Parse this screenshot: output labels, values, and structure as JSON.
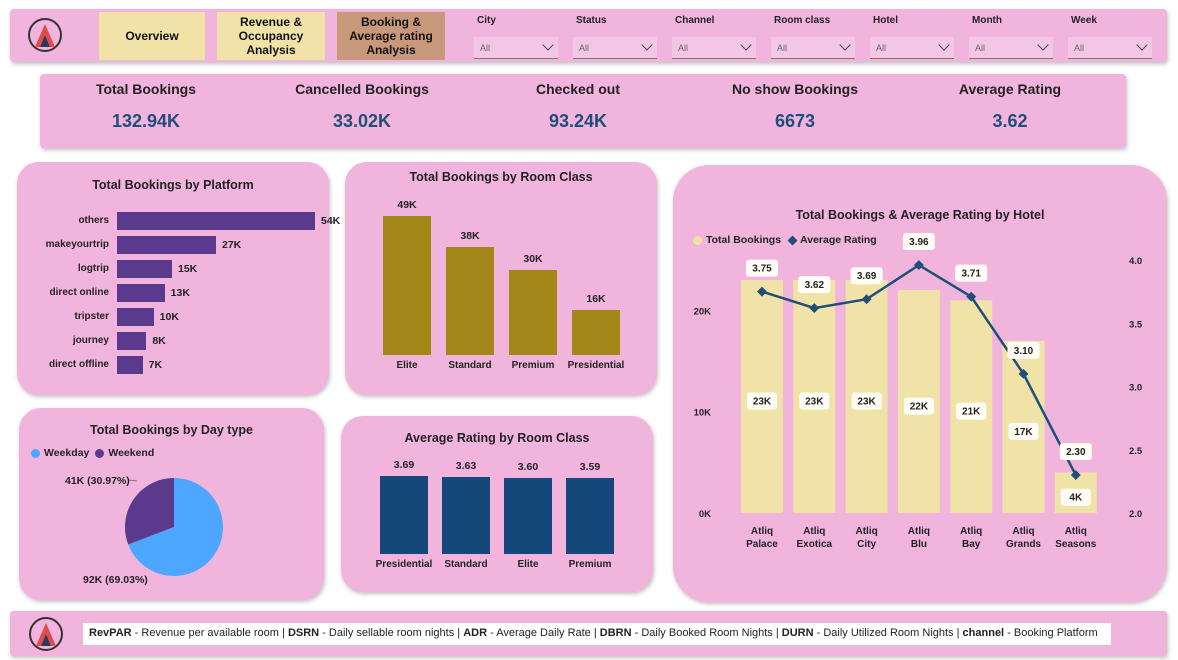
{
  "nav": {
    "overview": "Overview",
    "revenue": "Revenue & Occupancy Analysis",
    "booking": "Booking & Average rating Analysis"
  },
  "filters": [
    {
      "label": "City",
      "value": "All"
    },
    {
      "label": "Status",
      "value": "All"
    },
    {
      "label": "Channel",
      "value": "All"
    },
    {
      "label": "Room class",
      "value": "All"
    },
    {
      "label": "Hotel",
      "value": "All"
    },
    {
      "label": "Month",
      "value": "All"
    },
    {
      "label": "Week",
      "value": "All"
    }
  ],
  "kpis": [
    {
      "title": "Total Bookings",
      "value": "132.94K"
    },
    {
      "title": "Cancelled Bookings",
      "value": "33.02K"
    },
    {
      "title": "Checked out",
      "value": "93.24K"
    },
    {
      "title": "No show Bookings",
      "value": "6673"
    },
    {
      "title": "Average Rating",
      "value": "3.62"
    }
  ],
  "colors": {
    "background_card": "#f0b4dd",
    "platform_bar": "#5b3a8e",
    "room_bar": "#a38719",
    "rating_bar": "#15477a",
    "hotel_bar": "#f1e3a8",
    "line": "#1f4e79",
    "weekday": "#4da6ff",
    "weekend": "#5b3a8e",
    "kpi_value": "#1f4e79"
  },
  "chart_data": [
    {
      "type": "bar",
      "orientation": "horizontal",
      "title": "Total Bookings by Platform",
      "categories": [
        "others",
        "makeyourtrip",
        "logtrip",
        "direct online",
        "tripster",
        "journey",
        "direct offline"
      ],
      "values": [
        54,
        27,
        15,
        13,
        10,
        8,
        7
      ],
      "labels": [
        "54K",
        "27K",
        "15K",
        "13K",
        "10K",
        "8K",
        "7K"
      ]
    },
    {
      "type": "bar",
      "title": "Total Bookings by Room Class",
      "categories": [
        "Elite",
        "Standard",
        "Premium",
        "Presidential"
      ],
      "values": [
        49,
        38,
        30,
        16
      ],
      "labels": [
        "49K",
        "38K",
        "30K",
        "16K"
      ]
    },
    {
      "type": "pie",
      "title": "Total Bookings by Day type",
      "categories": [
        "Weekday",
        "Weekend"
      ],
      "values": [
        92,
        41
      ],
      "percent": [
        69.03,
        30.97
      ],
      "labels": [
        "92K (69.03%)",
        "41K (30.97%)"
      ],
      "legend": "top-left"
    },
    {
      "type": "bar",
      "title": "Average Rating by Room Class",
      "categories": [
        "Presidential",
        "Standard",
        "Elite",
        "Premium"
      ],
      "values": [
        3.69,
        3.63,
        3.6,
        3.59
      ],
      "labels": [
        "3.69",
        "3.63",
        "3.60",
        "3.59"
      ]
    },
    {
      "type": "bar",
      "title": "Total Bookings & Average Rating by Hotel",
      "categories": [
        "Atliq Palace",
        "Atliq Exotica",
        "Atliq City",
        "Atliq Blu",
        "Atliq Bay",
        "Atliq Grands",
        "Atliq Seasons"
      ],
      "series": [
        {
          "name": "Total Bookings",
          "values": [
            23,
            23,
            23,
            22,
            21,
            17,
            4
          ],
          "labels": [
            "23K",
            "23K",
            "23K",
            "22K",
            "21K",
            "17K",
            "4K"
          ]
        },
        {
          "name": "Average Rating",
          "type": "line",
          "values": [
            3.75,
            3.62,
            3.69,
            3.96,
            3.71,
            3.1,
            2.3
          ],
          "labels": [
            "3.75",
            "3.62",
            "3.69",
            "3.96",
            "3.71",
            "3.10",
            "2.30"
          ]
        }
      ],
      "ylim": [
        0,
        23
      ],
      "yticks": [
        "0K",
        "10K",
        "20K"
      ],
      "y2lim": [
        2.0,
        4.0
      ],
      "y2ticks": [
        "2.0",
        "2.5",
        "3.0",
        "3.5",
        "4.0"
      ],
      "legend": "top-left"
    }
  ],
  "footer": {
    "glossary": [
      {
        "abbr": "RevPAR",
        "desc": " - Revenue per available room"
      },
      {
        "abbr": "DSRN",
        "desc": " - Daily sellable room nights"
      },
      {
        "abbr": "ADR",
        "desc": " - Average Daily Rate"
      },
      {
        "abbr": "DBRN",
        "desc": " - Daily Booked Room Nights"
      },
      {
        "abbr": "DURN",
        "desc": " - Daily Utilized Room Nights"
      },
      {
        "abbr": "channel",
        "desc": " - Booking Platform"
      }
    ]
  }
}
